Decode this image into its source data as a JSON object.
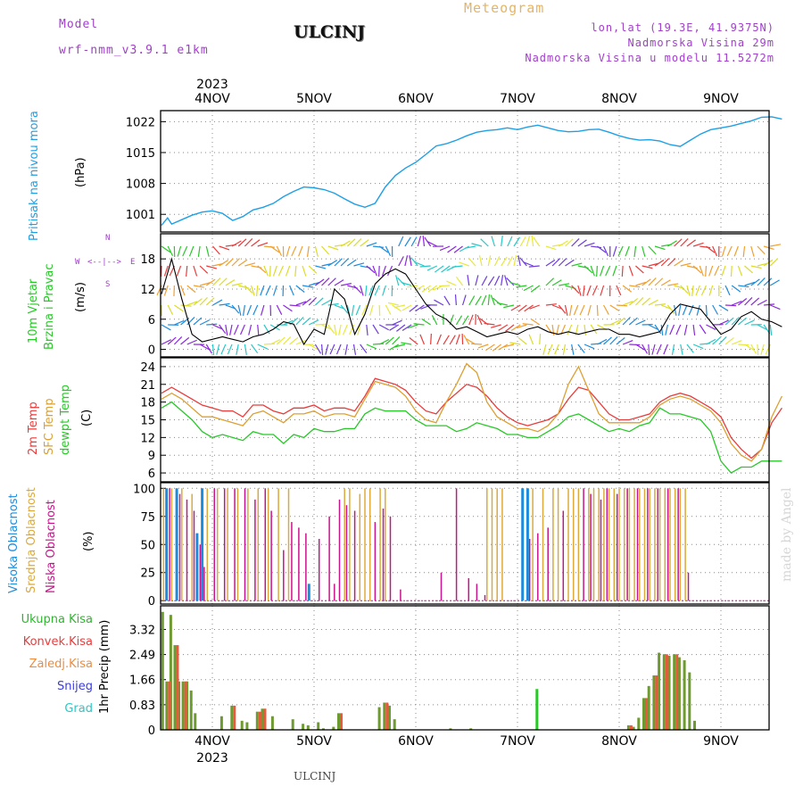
{
  "header": {
    "model_label": "Model",
    "model_name": "wrf-nmm_v3.9.1 e1km",
    "station": "ULCINJ",
    "product": "Meteogram",
    "lonlat": "lon,lat (19.3E, 41.9375N)",
    "altitude": "Nadmorska Visina 29m",
    "model_altitude": "Nadmorska Visina u modelu 11.5272m"
  },
  "footer": {
    "station": "ULCINJ",
    "credit": "made by Angel"
  },
  "colors": {
    "pressure": "#1ea0e6",
    "temp2m": "#e83c3c",
    "sfc": "#dca032",
    "dew": "#28c828",
    "high": "#1e8cdc",
    "mid": "#dcaa3c",
    "low": "#c8148c",
    "total": "#2ab82a",
    "conv": "#e83c3c",
    "frozen": "#f08c3c",
    "snow": "#3c3cdc",
    "grad": "#28c8c8",
    "title_purple": "#a040c8",
    "meteo": "#e6b464"
  },
  "chart_data": [
    {
      "type": "line",
      "panel": "pressure",
      "ylabel": "Pritisak na nivou mora",
      "unit": "(hPa)",
      "year": "2023",
      "x_ticks": [
        "4NOV",
        "5NOV",
        "6NOV",
        "7NOV",
        "8NOV",
        "9NOV"
      ],
      "y_ticks": [
        1001,
        1008,
        1015,
        1022
      ],
      "ylim": [
        997,
        1024.5
      ],
      "x_days": [
        -0.5,
        -0.44,
        -0.4,
        -0.3,
        -0.2,
        -0.1,
        0,
        0.1,
        0.2,
        0.3,
        0.4,
        0.5,
        0.6,
        0.7,
        0.8,
        0.9,
        1.0,
        1.1,
        1.2,
        1.3,
        1.4,
        1.5,
        1.6,
        1.7,
        1.8,
        1.9,
        2.0,
        2.1,
        2.2,
        2.3,
        2.4,
        2.5,
        2.6,
        2.7,
        2.8,
        2.9,
        3.0,
        3.1,
        3.2,
        3.3,
        3.4,
        3.5,
        3.6,
        3.7,
        3.8,
        3.9,
        4.0,
        4.1,
        4.2,
        4.3,
        4.4,
        4.5,
        4.6,
        4.7,
        4.8,
        4.9,
        5.0,
        5.1,
        5.2,
        5.3,
        5.4,
        5.5,
        5.6
      ],
      "values": [
        998.5,
        1000.2,
        998.8,
        999.8,
        1000.8,
        1001.5,
        1001.8,
        1001.2,
        999.6,
        1000.5,
        1002,
        1002.6,
        1003.5,
        1005,
        1006.2,
        1007.2,
        1007,
        1006.6,
        1005.8,
        1004.5,
        1003.3,
        1002.6,
        1003.5,
        1007.2,
        1009.8,
        1011.5,
        1012.8,
        1014.6,
        1016.5,
        1017,
        1017.8,
        1018.8,
        1019.6,
        1020,
        1020.2,
        1020.6,
        1020.2,
        1020.8,
        1021.2,
        1020.6,
        1020,
        1019.7,
        1019.8,
        1020.2,
        1020.3,
        1019.6,
        1018.8,
        1018.2,
        1017.8,
        1017.9,
        1017.6,
        1016.8,
        1016.4,
        1017.8,
        1019.2,
        1020.2,
        1020.6,
        1021.0,
        1021.6,
        1022.2,
        1023,
        1023.1,
        1022.6
      ]
    },
    {
      "type": "line",
      "panel": "wind",
      "ylabel": "10m Vjetar Brzina i Pravac",
      "unit": "(m/s)",
      "compass": {
        "w": "W",
        "e": "E",
        "n": "N",
        "s": "S"
      },
      "y_ticks": [
        0,
        6,
        12,
        18
      ],
      "ylim": [
        -1.5,
        23
      ],
      "x_days": [
        -0.5,
        -0.4,
        -0.3,
        -0.2,
        -0.1,
        0,
        0.1,
        0.2,
        0.3,
        0.4,
        0.5,
        0.6,
        0.7,
        0.8,
        0.9,
        1.0,
        1.1,
        1.2,
        1.3,
        1.4,
        1.5,
        1.6,
        1.7,
        1.8,
        1.9,
        2.0,
        2.1,
        2.2,
        2.3,
        2.4,
        2.5,
        2.6,
        2.7,
        2.8,
        2.9,
        3.0,
        3.1,
        3.2,
        3.3,
        3.4,
        3.5,
        3.6,
        3.7,
        3.8,
        3.9,
        4.0,
        4.1,
        4.2,
        4.3,
        4.4,
        4.5,
        4.6,
        4.7,
        4.8,
        4.9,
        5.0,
        5.1,
        5.2,
        5.3,
        5.4,
        5.5,
        5.6
      ],
      "series": [
        {
          "values": [
            11,
            18,
            10,
            3,
            1.5,
            2,
            2.5,
            2,
            1.5,
            2.5,
            3,
            4,
            5.5,
            5,
            1,
            4,
            3,
            12,
            10,
            3,
            7,
            13,
            15,
            16,
            15,
            12,
            9,
            7,
            6,
            4,
            4.5,
            3.5,
            2.5,
            3,
            3.5,
            3,
            4,
            4.5,
            3.5,
            3,
            3.5,
            3,
            3.5,
            4,
            4,
            3,
            3,
            2.5,
            3,
            3.5,
            7,
            9,
            8.5,
            8,
            5.5,
            3,
            4,
            6.5,
            7.5,
            6,
            5.5,
            4.5
          ]
        }
      ]
    },
    {
      "type": "line",
      "panel": "temperature",
      "ylabel": "2m Temp SFC Temp dewpt Temp",
      "unit": "(C)",
      "y_ticks": [
        6,
        9,
        12,
        15,
        18,
        21,
        24
      ],
      "ylim": [
        4.5,
        25.5
      ],
      "x_days": [
        -0.5,
        -0.4,
        -0.3,
        -0.2,
        -0.1,
        0,
        0.1,
        0.2,
        0.3,
        0.4,
        0.5,
        0.6,
        0.7,
        0.8,
        0.9,
        1.0,
        1.1,
        1.2,
        1.3,
        1.4,
        1.5,
        1.6,
        1.7,
        1.8,
        1.9,
        2.0,
        2.1,
        2.2,
        2.3,
        2.4,
        2.5,
        2.6,
        2.7,
        2.8,
        2.9,
        3.0,
        3.1,
        3.2,
        3.3,
        3.4,
        3.5,
        3.6,
        3.7,
        3.8,
        3.9,
        4.0,
        4.1,
        4.2,
        4.3,
        4.4,
        4.5,
        4.6,
        4.7,
        4.8,
        4.9,
        5.0,
        5.1,
        5.2,
        5.3,
        5.4,
        5.5,
        5.6
      ],
      "series": [
        {
          "name": "2m Temp",
          "values": [
            19.5,
            20.5,
            19.5,
            18.5,
            17.5,
            17,
            16.5,
            16.5,
            15.5,
            17.5,
            17.5,
            16.5,
            16,
            17,
            17,
            17.5,
            16.5,
            17,
            17,
            16.5,
            19,
            22,
            21.5,
            21,
            20,
            18,
            16.5,
            16,
            18,
            19.5,
            21,
            20.5,
            19,
            17,
            15.5,
            14.5,
            14,
            14.5,
            15,
            16,
            18.5,
            20.5,
            20,
            18,
            16,
            15,
            15,
            15.5,
            16,
            18,
            19,
            19.5,
            19,
            18,
            17,
            15.5,
            12,
            10,
            8.5,
            10,
            14.5,
            17
          ]
        },
        {
          "name": "SFC Temp",
          "values": [
            18.5,
            19.5,
            18.5,
            17,
            15.5,
            15.5,
            15,
            14.5,
            14,
            16,
            16.5,
            15.5,
            14.5,
            16,
            16,
            16.5,
            15.5,
            16,
            16,
            15.5,
            18.5,
            21.5,
            21,
            20.5,
            19,
            16.5,
            15,
            14.5,
            18,
            21,
            24.5,
            23,
            18,
            15.5,
            14.5,
            13.5,
            13.5,
            13,
            14,
            16,
            21,
            24,
            20,
            16,
            14.5,
            14.5,
            14.5,
            14.5,
            15.5,
            17.5,
            18.5,
            19,
            18.5,
            17.5,
            16.5,
            14.5,
            11,
            9,
            8,
            10,
            15.5,
            19
          ]
        },
        {
          "name": "dewpt Temp",
          "values": [
            17,
            18,
            16.5,
            15,
            13,
            12,
            12.5,
            12,
            11.5,
            13,
            12.5,
            12.5,
            11,
            12.5,
            12,
            13.5,
            13,
            13,
            13.5,
            13.5,
            16,
            17,
            16.5,
            16.5,
            16.5,
            15,
            14,
            14,
            14,
            13,
            13.5,
            14.5,
            14,
            13.5,
            12.5,
            12.5,
            12,
            12,
            13,
            14,
            15.5,
            16,
            15,
            14,
            13,
            13.5,
            13,
            14,
            14.5,
            17,
            16,
            16,
            15.5,
            15,
            13,
            8,
            6,
            7,
            7,
            8,
            8,
            8
          ]
        }
      ]
    },
    {
      "type": "bar",
      "panel": "clouds",
      "ylabel": "Visoka Oblacnost Srednja Oblacnost Niska Oblacnost",
      "unit": "(%)",
      "y_ticks": [
        0,
        25,
        50,
        75,
        100
      ],
      "ylim": [
        -3,
        105
      ],
      "series": [
        {
          "name": "Visoka Oblacnost",
          "x_days": [
            -0.45,
            -0.35,
            -0.15,
            -0.1,
            0.95,
            3.05,
            3.1
          ],
          "values": [
            100,
            100,
            60,
            100,
            15,
            100,
            100
          ]
        },
        {
          "name": "Srednja Oblacnost",
          "x_days": [
            -0.48,
            -0.4,
            -0.3,
            -0.2,
            -0.05,
            0.05,
            0.15,
            0.25,
            0.35,
            0.45,
            0.55,
            0.65,
            0.75,
            1.3,
            1.35,
            1.45,
            1.5,
            1.55,
            1.65,
            1.7,
            2.7,
            2.75,
            2.8,
            2.85,
            3.15,
            3.25,
            3.35,
            3.4,
            3.5,
            3.55,
            3.6,
            3.7,
            3.75,
            3.8,
            3.85,
            3.9,
            3.95,
            4.0,
            4.05,
            4.1,
            4.15,
            4.2,
            4.25,
            4.3,
            4.35,
            4.4,
            4.45,
            4.5,
            4.55,
            4.6,
            4.65
          ],
          "values": [
            100,
            100,
            100,
            95,
            100,
            100,
            100,
            100,
            100,
            100,
            100,
            100,
            100,
            100,
            100,
            95,
            100,
            100,
            100,
            100,
            100,
            100,
            100,
            100,
            100,
            100,
            100,
            100,
            100,
            100,
            100,
            100,
            100,
            100,
            100,
            100,
            100,
            100,
            100,
            100,
            100,
            100,
            100,
            100,
            100,
            100,
            100,
            100,
            100,
            100,
            100
          ]
        },
        {
          "name": "Niska Oblacnost",
          "x_days": [
            -0.42,
            -0.32,
            -0.25,
            -0.18,
            -0.12,
            -0.08,
            0.02,
            0.12,
            0.22,
            0.32,
            0.42,
            0.52,
            0.58,
            0.7,
            0.78,
            0.85,
            0.92,
            1.05,
            1.15,
            1.2,
            1.25,
            1.32,
            1.4,
            1.6,
            1.68,
            1.75,
            1.85,
            2.25,
            2.4,
            2.52,
            2.6,
            2.68,
            3.12,
            3.2,
            3.3,
            3.45,
            3.65,
            3.72,
            3.82,
            3.88,
            3.98,
            4.08,
            4.18,
            4.28,
            4.38,
            4.48,
            4.58,
            4.68
          ],
          "values": [
            100,
            95,
            90,
            80,
            50,
            30,
            100,
            100,
            100,
            100,
            90,
            100,
            80,
            45,
            70,
            65,
            60,
            55,
            75,
            15,
            90,
            85,
            80,
            70,
            82,
            75,
            10,
            25,
            100,
            20,
            15,
            5,
            55,
            60,
            65,
            80,
            100,
            95,
            90,
            100,
            95,
            100,
            100,
            100,
            100,
            100,
            100,
            25
          ]
        }
      ]
    },
    {
      "type": "bar",
      "panel": "precipitation",
      "ylabel": "1hr Precip (mm)",
      "legend": [
        "Ukupna Kisa",
        "Konvek.Kisa",
        "Zaledj.Kisa",
        "Snijeg",
        "Grad"
      ],
      "y_ticks": [
        0,
        0.83,
        1.66,
        2.49,
        3.32
      ],
      "y_tick_labels": [
        "0",
        "0.83",
        "1.66",
        "2.49",
        "3.32"
      ],
      "ylim": [
        0,
        4.1
      ],
      "x_ticks": [
        "4NOV",
        "5NOV",
        "6NOV",
        "7NOV",
        "8NOV",
        "9NOV"
      ],
      "year": "2023",
      "series": [
        {
          "name": "Ukupna Kisa",
          "x_days": [
            -0.48,
            -0.44,
            -0.4,
            -0.36,
            -0.32,
            -0.28,
            -0.24,
            -0.2,
            -0.16,
            0.1,
            0.2,
            0.3,
            0.35,
            0.45,
            0.5,
            0.6,
            0.8,
            0.9,
            0.95,
            1.05,
            1.1,
            1.2,
            1.25,
            1.65,
            1.7,
            1.75,
            1.8,
            2.35,
            2.55,
            3.2,
            4.1,
            4.15,
            4.2,
            4.25,
            4.3,
            4.35,
            4.4,
            4.45,
            4.5,
            4.55,
            4.6,
            4.65,
            4.7,
            4.75
          ],
          "values": [
            3.9,
            1.6,
            3.8,
            2.8,
            1.6,
            1.6,
            1.6,
            1.3,
            0.55,
            0.45,
            0.8,
            0.3,
            0.25,
            0.6,
            0.7,
            0.45,
            0.35,
            0.2,
            0.15,
            0.25,
            0.05,
            0.1,
            0.55,
            0.75,
            0.9,
            0.8,
            0.35,
            0.05,
            0.05,
            1.35,
            0.15,
            0.1,
            0.4,
            1.05,
            1.45,
            1.8,
            2.55,
            2.5,
            2.45,
            2.5,
            2.4,
            2.3,
            1.9,
            0.3
          ]
        },
        {
          "name": "Konvek.Kisa",
          "x_days": [
            -0.44,
            -0.36,
            -0.28,
            0.2,
            0.45,
            0.5,
            1.25,
            1.7,
            4.1,
            4.25,
            4.35,
            4.45,
            4.55
          ],
          "values": [
            1.6,
            2.8,
            1.6,
            0.8,
            0.6,
            0.7,
            0.55,
            0.9,
            0.15,
            1.05,
            1.8,
            2.5,
            2.5
          ]
        }
      ]
    }
  ]
}
